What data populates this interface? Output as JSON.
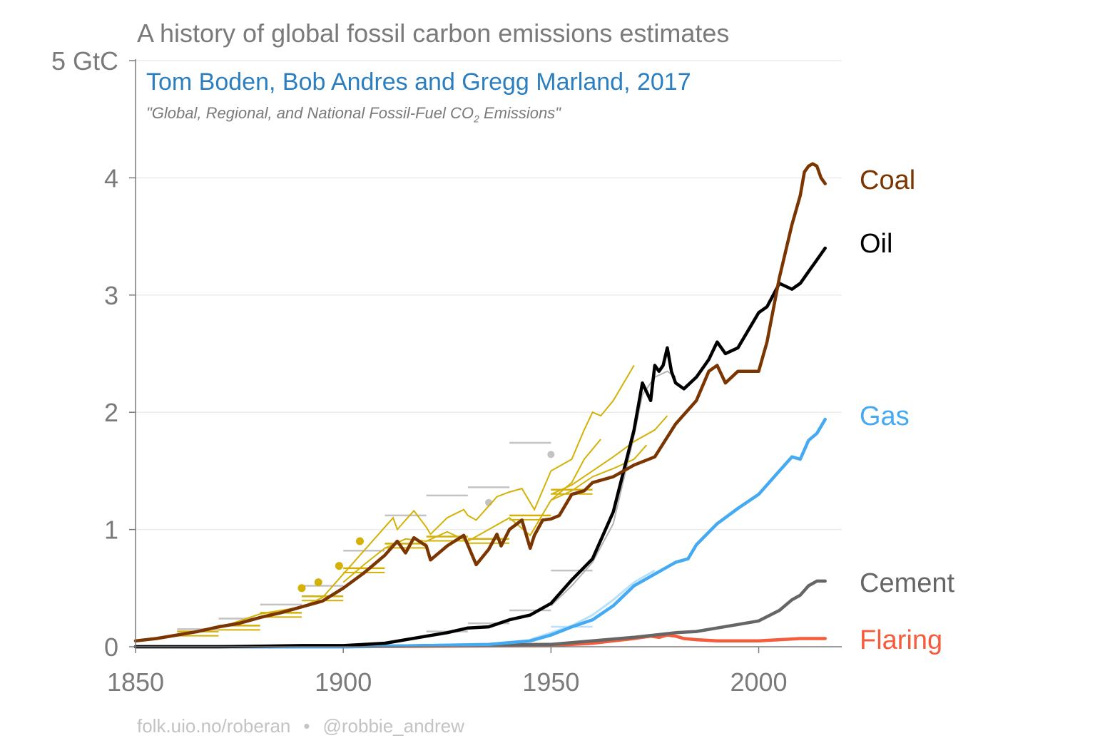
{
  "title": "A history of global fossil carbon emissions estimates",
  "subtitle": "Tom Boden, Bob Andres and Gregg Marland, 2017",
  "source_prefix": "\"Global, Regional, and National Fossil-Fuel CO",
  "source_sub": "2",
  "source_suffix": " Emissions\"",
  "footer": {
    "left": "folk.uio.no/roberan",
    "sep": "•",
    "right": "@robbie_andrew"
  },
  "colors": {
    "coal": "#7b3500",
    "oil": "#000000",
    "gas": "#45aaf2",
    "cement": "#666666",
    "flaring": "#f55c3c",
    "historical_coal": "#d4b106",
    "historical_grey": "#c3c3c3",
    "historical_gas": "#b9e0fa"
  },
  "chart_data": {
    "type": "line",
    "title": "A history of global fossil carbon emissions estimates",
    "xlim": [
      1850,
      2020
    ],
    "ylim": [
      0,
      5
    ],
    "x_ticks": [
      "1850",
      "1900",
      "1950",
      "2000"
    ],
    "y_ticks": [
      "0",
      "1",
      "2",
      "3",
      "4",
      "5 GtC"
    ],
    "grid": "horizontal",
    "series": [
      {
        "name": "Coal",
        "key": "coal",
        "x": [
          1850,
          1855,
          1860,
          1865,
          1870,
          1875,
          1880,
          1885,
          1890,
          1895,
          1900,
          1905,
          1910,
          1913,
          1915,
          1917,
          1920,
          1921,
          1925,
          1929,
          1932,
          1935,
          1937,
          1938,
          1940,
          1943,
          1945,
          1946,
          1948,
          1950,
          1952,
          1955,
          1958,
          1960,
          1965,
          1970,
          1975,
          1980,
          1985,
          1988,
          1990,
          1992,
          1995,
          2000,
          2002,
          2005,
          2008,
          2010,
          2011,
          2012,
          2013,
          2014,
          2015,
          2016
        ],
        "y": [
          0.05,
          0.07,
          0.1,
          0.13,
          0.17,
          0.2,
          0.25,
          0.29,
          0.34,
          0.39,
          0.5,
          0.63,
          0.78,
          0.9,
          0.8,
          0.93,
          0.86,
          0.74,
          0.86,
          0.95,
          0.7,
          0.83,
          0.96,
          0.86,
          1.0,
          1.08,
          0.84,
          0.95,
          1.08,
          1.09,
          1.12,
          1.3,
          1.33,
          1.4,
          1.45,
          1.55,
          1.62,
          1.9,
          2.1,
          2.35,
          2.4,
          2.25,
          2.35,
          2.35,
          2.6,
          3.15,
          3.6,
          3.85,
          4.05,
          4.1,
          4.12,
          4.1,
          4.0,
          3.95
        ]
      },
      {
        "name": "Oil",
        "key": "oil",
        "x": [
          1850,
          1870,
          1890,
          1900,
          1910,
          1920,
          1925,
          1930,
          1935,
          1940,
          1945,
          1950,
          1955,
          1960,
          1965,
          1970,
          1972,
          1974,
          1975,
          1976,
          1977,
          1978,
          1979,
          1980,
          1982,
          1985,
          1988,
          1990,
          1992,
          1995,
          2000,
          2002,
          2005,
          2008,
          2010,
          2012,
          2014,
          2016
        ],
        "y": [
          0,
          0,
          0.01,
          0.01,
          0.03,
          0.09,
          0.12,
          0.16,
          0.17,
          0.23,
          0.27,
          0.37,
          0.57,
          0.75,
          1.15,
          1.85,
          2.25,
          2.1,
          2.4,
          2.35,
          2.4,
          2.55,
          2.35,
          2.25,
          2.2,
          2.3,
          2.45,
          2.6,
          2.5,
          2.55,
          2.85,
          2.9,
          3.1,
          3.05,
          3.1,
          3.2,
          3.3,
          3.4
        ]
      },
      {
        "name": "Gas",
        "key": "gas",
        "x": [
          1850,
          1900,
          1920,
          1935,
          1945,
          1950,
          1955,
          1960,
          1965,
          1970,
          1975,
          1980,
          1983,
          1985,
          1990,
          1995,
          2000,
          2005,
          2008,
          2010,
          2012,
          2014,
          2016
        ],
        "y": [
          0,
          0,
          0.01,
          0.02,
          0.05,
          0.1,
          0.17,
          0.23,
          0.35,
          0.52,
          0.62,
          0.72,
          0.75,
          0.87,
          1.05,
          1.18,
          1.3,
          1.5,
          1.62,
          1.6,
          1.76,
          1.82,
          1.94
        ]
      },
      {
        "name": "Cement",
        "key": "cement",
        "x": [
          1850,
          1900,
          1920,
          1950,
          1960,
          1970,
          1975,
          1980,
          1985,
          1990,
          1995,
          2000,
          2005,
          2008,
          2010,
          2012,
          2014,
          2016
        ],
        "y": [
          0,
          0,
          0.01,
          0.02,
          0.05,
          0.08,
          0.1,
          0.12,
          0.13,
          0.16,
          0.19,
          0.22,
          0.31,
          0.4,
          0.44,
          0.52,
          0.56,
          0.56
        ]
      },
      {
        "name": "Flaring",
        "key": "flaring",
        "x": [
          1850,
          1900,
          1950,
          1955,
          1960,
          1965,
          1970,
          1972,
          1974,
          1976,
          1978,
          1980,
          1982,
          1985,
          1990,
          1995,
          2000,
          2005,
          2010,
          2016
        ],
        "y": [
          0,
          0,
          0.01,
          0.02,
          0.03,
          0.05,
          0.07,
          0.08,
          0.09,
          0.08,
          0.1,
          0.09,
          0.07,
          0.06,
          0.05,
          0.05,
          0.05,
          0.06,
          0.07,
          0.07
        ]
      }
    ],
    "historical_estimates": {
      "coal_lines": [
        {
          "x": [
            1860,
            1870,
            1880,
            1890,
            1895,
            1900,
            1905,
            1910,
            1912,
            1913,
            1915,
            1917,
            1920,
            1921,
            1925,
            1929,
            1930,
            1932,
            1935,
            1937,
            1940,
            1943,
            1946,
            1950,
            1955,
            1958,
            1960,
            1962,
            1965,
            1970
          ],
          "y": [
            0.1,
            0.16,
            0.28,
            0.34,
            0.42,
            0.62,
            0.82,
            1.02,
            1.1,
            1.0,
            1.08,
            1.16,
            1.02,
            0.96,
            1.1,
            1.17,
            1.12,
            1.08,
            1.2,
            1.28,
            1.32,
            1.35,
            1.17,
            1.5,
            1.6,
            1.85,
            2.0,
            1.97,
            2.1,
            2.4
          ]
        },
        {
          "x": [
            1900,
            1905,
            1910,
            1915,
            1920,
            1925,
            1930,
            1935,
            1940,
            1945,
            1950,
            1955,
            1958,
            1962
          ],
          "y": [
            0.55,
            0.7,
            0.84,
            0.92,
            0.9,
            0.98,
            0.9,
            1.0,
            1.1,
            0.95,
            1.25,
            1.4,
            1.6,
            1.77
          ]
        },
        {
          "x": [
            1950,
            1955,
            1960,
            1965,
            1970,
            1975,
            1978
          ],
          "y": [
            1.3,
            1.38,
            1.5,
            1.62,
            1.75,
            1.85,
            1.97
          ]
        },
        {
          "x": [
            1950,
            1955,
            1960,
            1965,
            1970,
            1973
          ],
          "y": [
            1.25,
            1.33,
            1.45,
            1.52,
            1.6,
            1.72
          ]
        }
      ],
      "coal_steps": [
        {
          "x": [
            1860,
            1870
          ],
          "y": 0.13
        },
        {
          "x": [
            1870,
            1880
          ],
          "y": 0.18
        },
        {
          "x": [
            1880,
            1890
          ],
          "y": 0.29
        },
        {
          "x": [
            1890,
            1900
          ],
          "y": 0.43
        },
        {
          "x": [
            1900,
            1910
          ],
          "y": 0.67
        },
        {
          "x": [
            1910,
            1920
          ],
          "y": 0.88
        },
        {
          "x": [
            1920,
            1930
          ],
          "y": 0.94
        },
        {
          "x": [
            1930,
            1940
          ],
          "y": 0.92
        },
        {
          "x": [
            1940,
            1950
          ],
          "y": 1.12
        },
        {
          "x": [
            1950,
            1960
          ],
          "y": 1.34
        }
      ],
      "coal_points": [
        {
          "x": 1890,
          "y": 0.5
        },
        {
          "x": 1894,
          "y": 0.55
        },
        {
          "x": 1899,
          "y": 0.69
        },
        {
          "x": 1904,
          "y": 0.9
        }
      ],
      "grey_steps": [
        {
          "x": [
            1860,
            1870
          ],
          "y": 0.15
        },
        {
          "x": [
            1870,
            1880
          ],
          "y": 0.24
        },
        {
          "x": [
            1880,
            1890
          ],
          "y": 0.36
        },
        {
          "x": [
            1890,
            1900
          ],
          "y": 0.52
        },
        {
          "x": [
            1900,
            1910
          ],
          "y": 0.82
        },
        {
          "x": [
            1910,
            1920
          ],
          "y": 1.12
        },
        {
          "x": [
            1920,
            1930
          ],
          "y": 1.29
        },
        {
          "x": [
            1930,
            1940
          ],
          "y": 1.36
        },
        {
          "x": [
            1940,
            1950
          ],
          "y": 1.74
        },
        {
          "x": [
            1920,
            1930
          ],
          "y": 0.13
        },
        {
          "x": [
            1930,
            1940
          ],
          "y": 0.2
        },
        {
          "x": [
            1940,
            1950
          ],
          "y": 0.31
        },
        {
          "x": [
            1950,
            1960
          ],
          "y": 0.65
        }
      ],
      "grey_points": [
        {
          "x": 1935,
          "y": 1.23
        },
        {
          "x": 1950,
          "y": 1.64
        }
      ],
      "grey_lines": [
        {
          "x": [
            1950,
            1955,
            1960,
            1965,
            1970,
            1972,
            1975,
            1978,
            1980
          ],
          "y": [
            0.35,
            0.52,
            0.72,
            1.05,
            1.8,
            2.15,
            2.3,
            2.35,
            2.3
          ]
        }
      ],
      "gas_lines": [
        {
          "x": [
            1945,
            1950,
            1955,
            1960,
            1965,
            1970,
            1975
          ],
          "y": [
            0.06,
            0.12,
            0.18,
            0.27,
            0.4,
            0.55,
            0.65
          ]
        }
      ],
      "gas_steps": [
        {
          "x": [
            1950,
            1960
          ],
          "y": 0.17
        }
      ]
    }
  }
}
